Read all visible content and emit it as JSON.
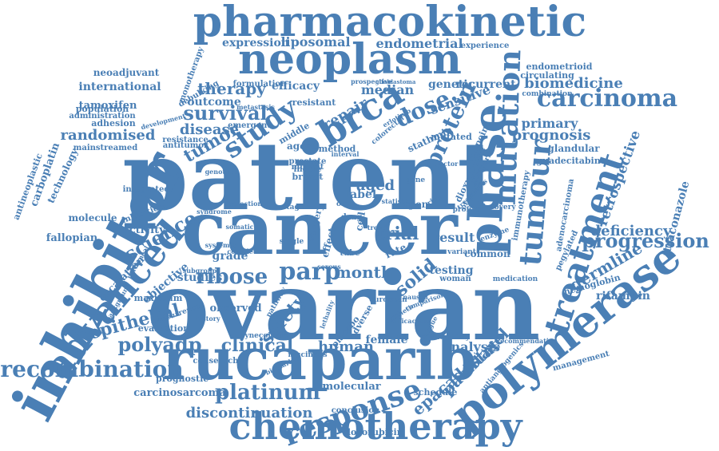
{
  "color": "#4a7fb5",
  "words": [
    {
      "text": "patient"
    },
    {
      "text": "cancer"
    },
    {
      "text": "ovarian"
    },
    {
      "text": "inhibitor"
    },
    {
      "text": "rucaparib"
    },
    {
      "text": "neoplasm"
    },
    {
      "text": "pharmacokinetic"
    },
    {
      "text": "polymerase"
    },
    {
      "text": "chemotherapy"
    },
    {
      "text": "advanced"
    },
    {
      "text": "recombination"
    },
    {
      "text": "phase"
    },
    {
      "text": "brca"
    },
    {
      "text": "treatment"
    },
    {
      "text": "tumour"
    },
    {
      "text": "mutation"
    },
    {
      "text": "carcinoma"
    },
    {
      "text": "response"
    },
    {
      "text": "platinum"
    },
    {
      "text": "study"
    },
    {
      "text": "parp"
    },
    {
      "text": "ribose"
    },
    {
      "text": "progression"
    },
    {
      "text": "survival"
    },
    {
      "text": "protein"
    },
    {
      "text": "dose"
    },
    {
      "text": "polyadp"
    },
    {
      "text": "epithelial"
    },
    {
      "text": "safety"
    },
    {
      "text": "clinical"
    },
    {
      "text": "science"
    },
    {
      "text": "tumor"
    },
    {
      "text": "month"
    },
    {
      "text": "solid"
    },
    {
      "text": "trial"
    },
    {
      "text": "epacadostat"
    },
    {
      "text": "paclitaxel"
    },
    {
      "text": "germline"
    },
    {
      "text": "deficiency"
    },
    {
      "text": "discontinuation"
    },
    {
      "text": "biomedicine"
    },
    {
      "text": "prognosis"
    },
    {
      "text": "randomised"
    },
    {
      "text": "therapy"
    },
    {
      "text": "disease"
    },
    {
      "text": "retrospective"
    },
    {
      "text": "human"
    },
    {
      "text": "analysis"
    },
    {
      "text": "aged"
    },
    {
      "text": "result"
    },
    {
      "text": "repair"
    },
    {
      "text": "sensitive"
    },
    {
      "text": "primary"
    },
    {
      "text": "median"
    },
    {
      "text": "endometrial"
    },
    {
      "text": "liposomal"
    },
    {
      "text": "expression"
    },
    {
      "text": "international"
    },
    {
      "text": "carcinosarcoma"
    },
    {
      "text": "studies"
    },
    {
      "text": "grade"
    },
    {
      "text": "outcome"
    },
    {
      "text": "efficacy"
    },
    {
      "text": "genetic"
    },
    {
      "text": "recurrent"
    },
    {
      "text": "itraconazole"
    },
    {
      "text": "rifampin"
    },
    {
      "text": "molecular"
    },
    {
      "text": "female"
    },
    {
      "text": "testing"
    },
    {
      "text": "label"
    },
    {
      "text": "common"
    },
    {
      "text": "observed"
    },
    {
      "text": "objective"
    },
    {
      "text": "escalation"
    },
    {
      "text": "fallopian"
    },
    {
      "text": "activity"
    },
    {
      "text": "tamoxifen"
    },
    {
      "text": "neoadjuvant"
    },
    {
      "text": "stathmin"
    },
    {
      "text": "endometrioid"
    },
    {
      "text": "circulating"
    },
    {
      "text": "experience"
    },
    {
      "text": "schedule"
    },
    {
      "text": "doxorubicin"
    },
    {
      "text": "conclusion"
    },
    {
      "text": "prognostic"
    },
    {
      "text": "management"
    },
    {
      "text": "hemoglobin"
    },
    {
      "text": "carboplatin"
    },
    {
      "text": "antineoplastic"
    },
    {
      "text": "technology"
    },
    {
      "text": "molecule"
    },
    {
      "text": "population"
    },
    {
      "text": "administration"
    },
    {
      "text": "adhesion"
    },
    {
      "text": "mainstreamed"
    },
    {
      "text": "monotherapy"
    },
    {
      "text": "debulking"
    },
    {
      "text": "formulation"
    },
    {
      "text": "resistant"
    },
    {
      "text": "mutated"
    },
    {
      "text": "middle"
    },
    {
      "text": "agent"
    },
    {
      "text": "method"
    },
    {
      "text": "resistance"
    },
    {
      "text": "antitumor"
    },
    {
      "text": "development"
    },
    {
      "text": "emergent"
    },
    {
      "text": "glandular"
    },
    {
      "text": "endpoint"
    },
    {
      "text": "immunotherapy"
    },
    {
      "text": "adenocarcinoma"
    },
    {
      "text": "pegylated"
    },
    {
      "text": "guadecitabine"
    },
    {
      "text": "combination"
    },
    {
      "text": "maximum"
    },
    {
      "text": "evaluation"
    },
    {
      "text": "cellsearch"
    },
    {
      "text": "recurrence"
    },
    {
      "text": "integrated"
    },
    {
      "text": "inhibition"
    },
    {
      "text": "mucinous"
    },
    {
      "text": "placebo"
    },
    {
      "text": "adverse"
    },
    {
      "text": "european"
    },
    {
      "text": "woman"
    },
    {
      "text": "medication"
    },
    {
      "text": "recommendation"
    },
    {
      "text": "antiangiogenics"
    },
    {
      "text": "open"
    },
    {
      "text": "breast"
    },
    {
      "text": "indole"
    },
    {
      "text": "prostate"
    },
    {
      "text": "mutant"
    },
    {
      "text": "erlotinib"
    },
    {
      "text": "colorectal"
    },
    {
      "text": "prospective"
    },
    {
      "text": "glioblastoma"
    },
    {
      "text": "drug"
    },
    {
      "text": "cell"
    },
    {
      "text": "effect"
    },
    {
      "text": "rate"
    },
    {
      "text": "tube"
    },
    {
      "text": "surgery"
    },
    {
      "text": "variant"
    },
    {
      "text": "enzyme"
    },
    {
      "text": "discovery"
    },
    {
      "text": "genotype"
    },
    {
      "text": "somatic"
    },
    {
      "text": "selection"
    },
    {
      "text": "syndrome"
    },
    {
      "text": "stage"
    },
    {
      "text": "oral"
    },
    {
      "text": "single"
    },
    {
      "text": "nausea"
    },
    {
      "text": "fatigue"
    },
    {
      "text": "pathway"
    },
    {
      "text": "biomarker"
    },
    {
      "text": "metastasis"
    },
    {
      "text": "background"
    },
    {
      "text": "subgroup"
    },
    {
      "text": "peritoneal"
    },
    {
      "text": "serous"
    },
    {
      "text": "dioxygenase"
    },
    {
      "text": "olaparib"
    },
    {
      "text": "niraparib"
    },
    {
      "text": "gene"
    },
    {
      "text": "risk"
    },
    {
      "text": "trend"
    },
    {
      "text": "efficacious"
    },
    {
      "text": "gynecologic"
    },
    {
      "text": "synthetic"
    },
    {
      "text": "lethality"
    },
    {
      "text": "profile"
    },
    {
      "text": "tolerability"
    },
    {
      "text": "comparison"
    },
    {
      "text": "treatments"
    },
    {
      "text": "statistics"
    },
    {
      "text": "interval"
    },
    {
      "text": "factor"
    },
    {
      "text": "complete"
    },
    {
      "text": "systemic"
    },
    {
      "text": "history"
    }
  ]
}
